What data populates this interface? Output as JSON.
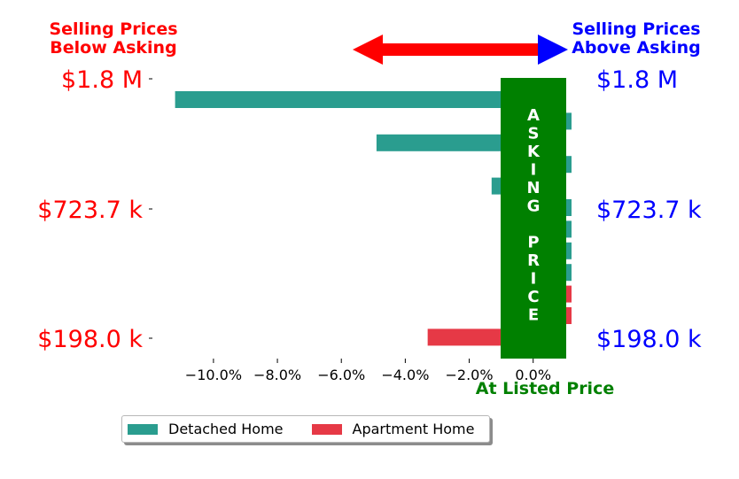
{
  "header": {
    "below_line1": "Selling Prices",
    "below_line2": "Below Asking",
    "above_line1": "Selling Prices",
    "above_line2": "Above Asking",
    "below_color": "#ff0000",
    "above_color": "#0000ff"
  },
  "band": {
    "letters": [
      "A",
      "S",
      "K",
      "I",
      "N",
      "G",
      "",
      "P",
      "R",
      "I",
      "C",
      "E"
    ],
    "color": "#008000",
    "caption": "At Listed Price"
  },
  "price_labels": {
    "left": [
      "$1.8 M",
      "$723.7 k",
      "$198.0 k"
    ],
    "right": [
      "$1.8 M",
      "$723.7 k",
      "$198.0 k"
    ]
  },
  "legend": {
    "items": [
      {
        "label": "Detached Home",
        "color": "#2a9d8f"
      },
      {
        "label": "Apartment Home",
        "color": "#e63946"
      }
    ]
  },
  "chart_data": {
    "type": "bar",
    "orientation": "horizontal",
    "xlim": [
      -11.3,
      1.2
    ],
    "x_ticks": [
      -10,
      -8,
      -6,
      -4,
      -2,
      0
    ],
    "x_tick_labels": [
      "−10.0%",
      "−8.0%",
      "−6.0%",
      "−4.0%",
      "−2.0%",
      "0.0%"
    ],
    "bars": [
      {
        "value": -11.2,
        "series": "Detached Home"
      },
      {
        "value": 1.2,
        "series": "Detached Home"
      },
      {
        "value": -4.9,
        "series": "Detached Home"
      },
      {
        "value": 1.2,
        "series": "Detached Home"
      },
      {
        "value": -1.3,
        "series": "Detached Home"
      },
      {
        "value": 1.2,
        "series": "Detached Home"
      },
      {
        "value": 1.2,
        "series": "Detached Home"
      },
      {
        "value": 1.2,
        "series": "Detached Home"
      },
      {
        "value": 1.2,
        "series": "Detached Home"
      },
      {
        "value": 1.2,
        "series": "Apartment Home"
      },
      {
        "value": 1.2,
        "series": "Apartment Home"
      },
      {
        "value": -3.3,
        "series": "Apartment Home"
      }
    ]
  }
}
